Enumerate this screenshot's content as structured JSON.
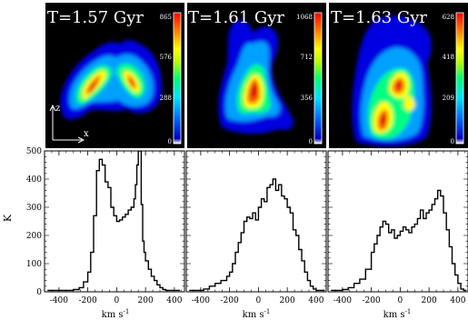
{
  "colors": {
    "background": "#ffffff",
    "panel_image_bg": "#000000",
    "label_text": "#ffffff",
    "histogram_line": "#000000",
    "colormap": [
      "#00008c",
      "#0000ff",
      "#0080ff",
      "#00d8ff",
      "#00ff80",
      "#a0ff00",
      "#ffff00",
      "#ffa000",
      "#ff2000",
      "#c00000"
    ]
  },
  "map_panels": [
    {
      "time_label": "T=1.57 Gyr",
      "colorbar_ticks": [
        "865",
        "576",
        "288",
        "0"
      ]
    },
    {
      "time_label": "T=1.61 Gyr",
      "colorbar_ticks": [
        "1068",
        "712",
        "356",
        "0"
      ]
    },
    {
      "time_label": "T=1.63 Gyr",
      "colorbar_ticks": [
        "628",
        "418",
        "209",
        "0"
      ]
    }
  ],
  "axes_indicator": {
    "z_label": "z",
    "x_label": "x"
  },
  "chart_data": [
    {
      "type": "line",
      "xlabel": "km s",
      "xlabel_superscript": "-1",
      "ylabel": "K",
      "xlim": [
        -500,
        470
      ],
      "ylim": [
        0,
        500
      ],
      "xticks": [
        -400,
        -200,
        0,
        200,
        400
      ],
      "xtick_labels": [
        "-400",
        "-200",
        "0",
        "200",
        "400"
      ],
      "yticks": [
        0,
        100,
        200,
        300,
        400,
        500
      ],
      "ytick_labels": [
        "0",
        "100",
        "200",
        "300",
        "400",
        "500"
      ],
      "series": [
        {
          "x": [
            -480,
            -400,
            -340,
            -300,
            -260,
            -230,
            -200,
            -180,
            -160,
            -140,
            -120,
            -100,
            -80,
            -60,
            -40,
            -20,
            0,
            20,
            40,
            60,
            80,
            100,
            120,
            130,
            140,
            150,
            160,
            170,
            180,
            190,
            200,
            220,
            240,
            260,
            280,
            300,
            320,
            340,
            360,
            380,
            400,
            420
          ],
          "y": [
            5,
            5,
            5,
            8,
            15,
            35,
            70,
            140,
            270,
            430,
            470,
            450,
            390,
            370,
            300,
            270,
            250,
            255,
            265,
            275,
            290,
            300,
            330,
            380,
            450,
            500,
            500,
            310,
            180,
            140,
            110,
            80,
            55,
            40,
            25,
            15,
            8,
            5,
            5,
            5,
            5,
            5
          ]
        }
      ]
    },
    {
      "type": "line",
      "xlabel": "km s",
      "xlabel_superscript": "-1",
      "xlim": [
        -500,
        470
      ],
      "ylim": [
        0,
        500
      ],
      "xticks": [
        -400,
        -200,
        0,
        200,
        400
      ],
      "xtick_labels": [
        "-400",
        "-200",
        "0",
        "200",
        "400"
      ],
      "series": [
        {
          "x": [
            -480,
            -420,
            -380,
            -340,
            -300,
            -260,
            -220,
            -200,
            -180,
            -160,
            -140,
            -120,
            -100,
            -80,
            -60,
            -40,
            -20,
            0,
            20,
            40,
            60,
            80,
            100,
            120,
            140,
            160,
            180,
            200,
            220,
            240,
            260,
            280,
            300,
            320,
            340,
            360,
            380,
            400,
            420,
            440
          ],
          "y": [
            5,
            5,
            10,
            20,
            30,
            40,
            55,
            70,
            100,
            140,
            175,
            210,
            250,
            265,
            260,
            280,
            255,
            300,
            330,
            320,
            370,
            380,
            400,
            360,
            380,
            340,
            330,
            300,
            280,
            220,
            200,
            150,
            110,
            70,
            40,
            20,
            10,
            5,
            5,
            5
          ]
        }
      ]
    },
    {
      "type": "line",
      "xlabel": "km s",
      "xlabel_superscript": "-1",
      "xlim": [
        -500,
        470
      ],
      "ylim": [
        0,
        500
      ],
      "xticks": [
        -400,
        -200,
        0,
        200,
        400
      ],
      "xtick_labels": [
        "-400",
        "-200",
        "0",
        "200",
        "400"
      ],
      "series": [
        {
          "x": [
            -480,
            -440,
            -400,
            -360,
            -320,
            -280,
            -240,
            -200,
            -180,
            -160,
            -140,
            -120,
            -100,
            -80,
            -60,
            -40,
            -20,
            0,
            20,
            40,
            60,
            80,
            100,
            120,
            140,
            160,
            180,
            200,
            220,
            240,
            260,
            280,
            300,
            320,
            340,
            360,
            380,
            400,
            420,
            440
          ],
          "y": [
            5,
            5,
            8,
            15,
            30,
            45,
            80,
            140,
            170,
            200,
            230,
            250,
            240,
            210,
            220,
            190,
            200,
            215,
            230,
            220,
            210,
            230,
            240,
            260,
            290,
            260,
            280,
            290,
            310,
            330,
            360,
            340,
            280,
            220,
            160,
            100,
            60,
            30,
            10,
            5
          ]
        }
      ]
    }
  ]
}
